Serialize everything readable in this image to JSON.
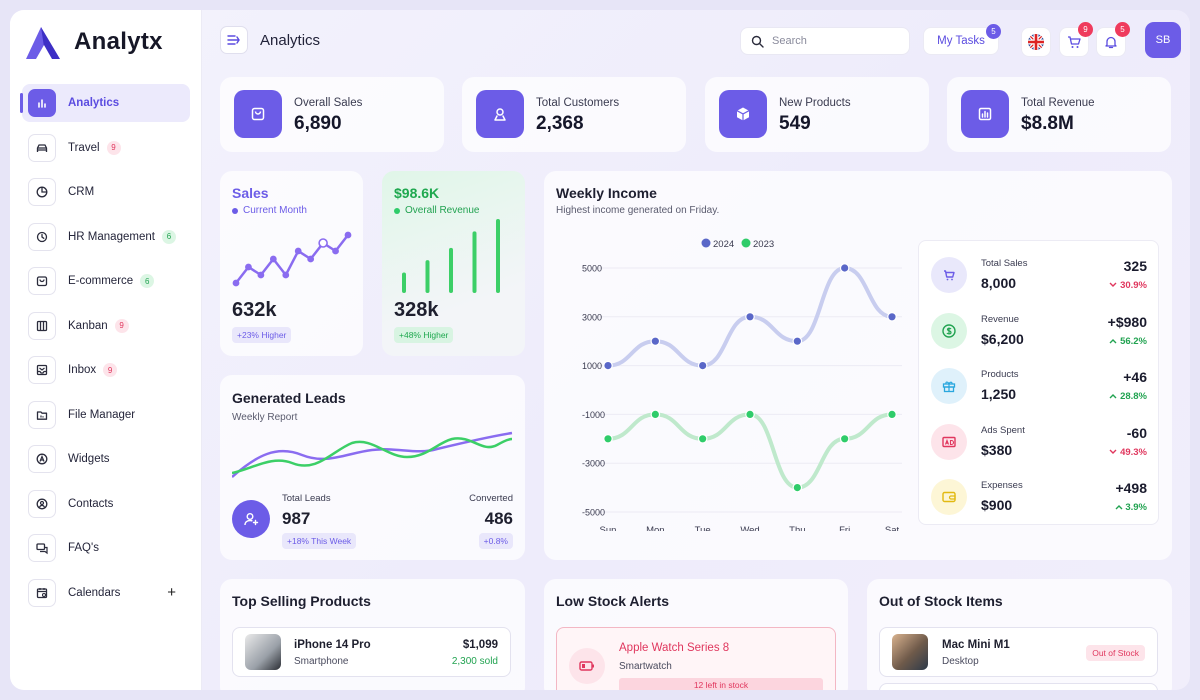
{
  "brand": {
    "name": "Analytx"
  },
  "sidebar": {
    "items": [
      {
        "label": "Analytics",
        "badge": "",
        "icon": "chart-bars-icon",
        "active": true
      },
      {
        "label": "Travel",
        "badge": "9",
        "badge_color": "pink",
        "icon": "car-icon"
      },
      {
        "label": "CRM",
        "badge": "",
        "icon": "pie-icon"
      },
      {
        "label": "HR Management",
        "badge": "6",
        "badge_color": "green",
        "icon": "history-icon"
      },
      {
        "label": "E-commerce",
        "badge": "6",
        "badge_color": "green",
        "icon": "bag-icon"
      },
      {
        "label": "Kanban",
        "badge": "9",
        "badge_color": "pink",
        "icon": "columns-icon"
      },
      {
        "label": "Inbox",
        "badge": "9",
        "badge_color": "pink",
        "icon": "inbox-icon"
      },
      {
        "label": "File Manager",
        "badge": "",
        "icon": "folder-icon"
      },
      {
        "label": "Widgets",
        "badge": "",
        "icon": "widget-icon"
      },
      {
        "label": "Contacts",
        "badge": "",
        "icon": "contact-icon"
      },
      {
        "label": "FAQ's",
        "badge": "",
        "icon": "chat-icon"
      },
      {
        "label": "Calendars",
        "badge": "",
        "icon": "calendar-icon",
        "plus": "+"
      }
    ]
  },
  "header": {
    "title": "Analytics",
    "search_placeholder": "Search",
    "tasks_label": "My Tasks",
    "tasks_count": "5",
    "cart_count": "9",
    "notifications_count": "5",
    "avatar_initials": "SB"
  },
  "stats": [
    {
      "label": "Overall Sales",
      "value": "6,890",
      "icon": "bag-icon"
    },
    {
      "label": "Total Customers",
      "value": "2,368",
      "icon": "user-icon"
    },
    {
      "label": "New Products",
      "value": "549",
      "icon": "box-icon"
    },
    {
      "label": "Total Revenue",
      "value": "$8.8M",
      "icon": "chart-icon"
    }
  ],
  "sales_card": {
    "title": "Sales",
    "subtitle": "Current Month",
    "value": "632k",
    "pill": "+23% Higher",
    "spark": [
      3,
      5,
      4,
      6,
      4,
      7,
      6,
      8,
      7,
      9
    ]
  },
  "revenue_card": {
    "title": "$98.6K",
    "subtitle": "Overall Revenue",
    "value": "328k",
    "pill": "+48% Higher",
    "bars": [
      2,
      3.5,
      5,
      7,
      8.5
    ]
  },
  "leads": {
    "title": "Generated Leads",
    "subtitle": "Weekly Report",
    "total_label": "Total Leads",
    "total_value": "987",
    "total_pill": "+18% This Week",
    "converted_label": "Converted",
    "converted_value": "486",
    "converted_pill": "+0.8%"
  },
  "weekly_income": {
    "title": "Weekly Income",
    "subtitle": "Highest income generated on Friday."
  },
  "chart_data": {
    "type": "line",
    "categories": [
      "Sun",
      "Mon",
      "Tue",
      "Wed",
      "Thu",
      "Fri",
      "Sat"
    ],
    "series": [
      {
        "name": "2024",
        "color": "#5a67c8",
        "values": [
          1000,
          2000,
          1000,
          3000,
          2000,
          5000,
          3000
        ]
      },
      {
        "name": "2023",
        "color": "#2fcc6a",
        "values": [
          -2000,
          -1000,
          -2000,
          -1000,
          -4000,
          -2000,
          -1000
        ]
      }
    ],
    "yticks": [
      "5000",
      "3000",
      "1000",
      "-1000",
      "-3000",
      "-5000"
    ],
    "ylim": [
      -5000,
      5000
    ],
    "legend": "top"
  },
  "metrics": [
    {
      "label": "Total Sales",
      "value": "8,000",
      "delta": "325",
      "pct": "30.9%",
      "dir": "down",
      "icon": "cart-icon",
      "bg": "#e9e8fb",
      "fg": "#6c5ce7"
    },
    {
      "label": "Revenue",
      "value": "$6,200",
      "delta": "+$980",
      "pct": "56.2%",
      "dir": "up",
      "icon": "dollar-icon",
      "bg": "#dcf6e4",
      "fg": "#22a351"
    },
    {
      "label": "Products",
      "value": "1,250",
      "delta": "+46",
      "pct": "28.8%",
      "dir": "up",
      "icon": "gift-icon",
      "bg": "#dff1fb",
      "fg": "#2aa7de"
    },
    {
      "label": "Ads Spent",
      "value": "$380",
      "delta": "-60",
      "pct": "49.3%",
      "dir": "down",
      "icon": "ad-icon",
      "bg": "#fde4ea",
      "fg": "#e0375e"
    },
    {
      "label": "Expenses",
      "value": "$900",
      "delta": "+498",
      "pct": "3.9%",
      "dir": "up",
      "icon": "wallet-icon",
      "bg": "#fdf6d6",
      "fg": "#e2b911"
    }
  ],
  "top_selling": {
    "title": "Top Selling Products",
    "items": [
      {
        "name": "iPhone 14 Pro",
        "category": "Smartphone",
        "price": "$1,099",
        "sold": "2,300 sold"
      }
    ]
  },
  "low_stock": {
    "title": "Low Stock Alerts",
    "items": [
      {
        "name": "Apple Watch Series 8",
        "category": "Smartwatch",
        "note": "12 left in stock"
      }
    ]
  },
  "out_of_stock": {
    "title": "Out of Stock Items",
    "items": [
      {
        "name": "Mac Mini M1",
        "category": "Desktop",
        "status": "Out of Stock"
      }
    ]
  },
  "colors": {
    "accent": "#6c5ce7",
    "green": "#2fcc6a",
    "red": "#ef3b5d"
  }
}
